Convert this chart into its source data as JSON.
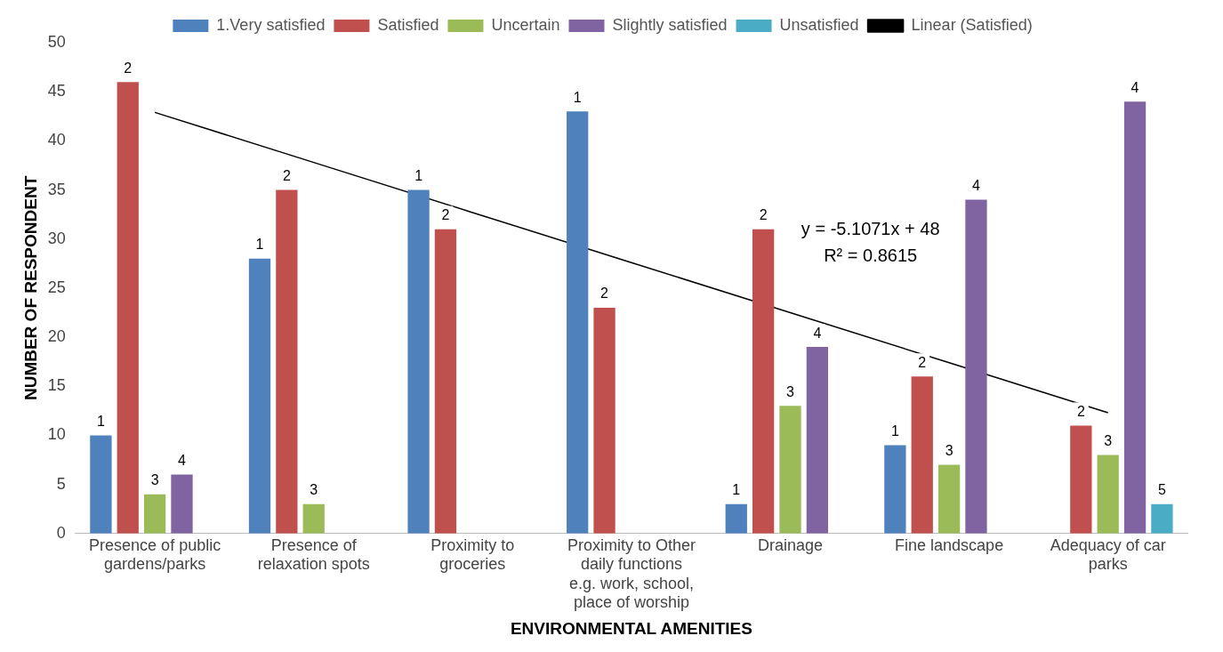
{
  "chart_data": {
    "type": "bar",
    "xlabel": "ENVIRONMENTAL AMENITIES",
    "ylabel": "NUMBER OF RESPONDENT",
    "categories": [
      "Presence of public gardens/parks",
      "Presence of relaxation spots",
      "Proximity to groceries",
      "Proximity to Other daily functions e.g. work, school, place of worship",
      "Drainage",
      "Fine landscape",
      "Adequacy of car parks"
    ],
    "series": [
      {
        "name": "1.Very satisfied",
        "color": "#4f81bd",
        "values": [
          10,
          28,
          35,
          43,
          3,
          9,
          null
        ]
      },
      {
        "name": "Satisfied",
        "color": "#c0504d",
        "values": [
          46,
          35,
          31,
          23,
          31,
          16,
          11
        ]
      },
      {
        "name": "Uncertain",
        "color": "#9bbb59",
        "values": [
          4,
          3,
          null,
          null,
          13,
          7,
          8
        ]
      },
      {
        "name": "Slightly satisfied",
        "color": "#8064a2",
        "values": [
          6,
          null,
          null,
          null,
          19,
          34,
          44
        ]
      },
      {
        "name": "Unsatisfied",
        "color": "#4bacc6",
        "values": [
          null,
          null,
          null,
          null,
          null,
          null,
          3
        ]
      },
      {
        "name": "Linear (Satisfied)",
        "type": "line",
        "color": "#000000",
        "values": [
          42.9,
          37.8,
          32.7,
          27.6,
          22.5,
          17.4,
          12.3
        ]
      }
    ],
    "ylim": [
      0,
      50
    ],
    "yticks": [
      0,
      5,
      10,
      15,
      20,
      25,
      30,
      35,
      40,
      45,
      50
    ],
    "annotations": [
      "y = -5.1071x + 48",
      "R² = 0.8615",
      "1",
      "1",
      "1",
      "1",
      "1",
      "1",
      "2",
      "2",
      "2",
      "2",
      "2",
      "2",
      "2",
      "3",
      "3",
      "3",
      "3",
      "3",
      "4",
      "4",
      "4",
      "4",
      "5"
    ],
    "grid": false,
    "legend": "top",
    "marker": "none"
  }
}
